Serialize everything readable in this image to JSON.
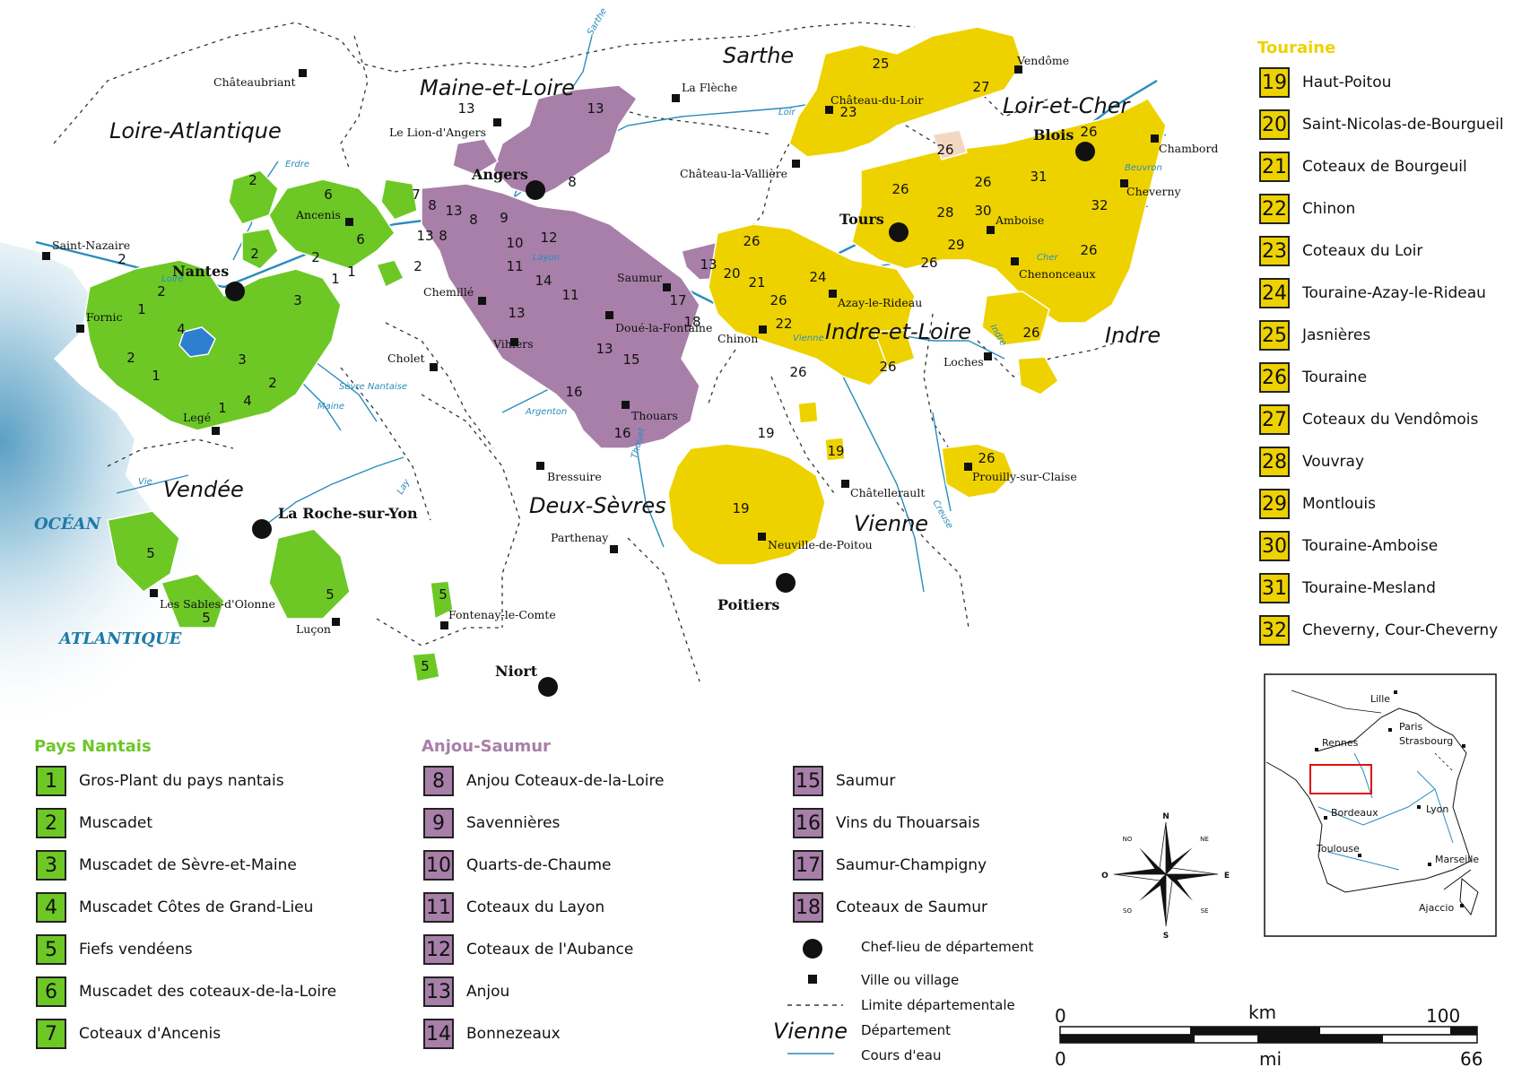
{
  "map": {
    "sea_labels": [
      "OCÉAN",
      "ATLANTIQUE"
    ],
    "departments": [
      {
        "name": "Loire-Atlantique"
      },
      {
        "name": "Maine-et-Loire"
      },
      {
        "name": "Sarthe"
      },
      {
        "name": "Loir-et-Cher"
      },
      {
        "name": "Indre-et-Loire"
      },
      {
        "name": "Indre"
      },
      {
        "name": "Vendée"
      },
      {
        "name": "Deux-Sèvres"
      },
      {
        "name": "Vienne"
      }
    ],
    "prefectures": [
      "Nantes",
      "Angers",
      "Tours",
      "Blois",
      "La Roche-sur-Yon",
      "Niort",
      "Poitiers"
    ],
    "towns": [
      "Châteaubriant",
      "Le Lion-d'Angers",
      "La Flèche",
      "Vendôme",
      "Château-du-Loir",
      "Chambord",
      "Cheverny",
      "Château-la-Vallière",
      "Saint-Nazaire",
      "Ancenis",
      "Amboise",
      "Chenonceaux",
      "Chemillé",
      "Saumur",
      "Fornic",
      "Doué-la-Fontaine",
      "Chinon",
      "Azay-le-Rideau",
      "Vihiers",
      "Cholet",
      "Loches",
      "Legé",
      "Thouars",
      "Bressuire",
      "Châtellerault",
      "Prouilly-sur-Claise",
      "Neuville-de-Poitou",
      "Parthenay",
      "Les Sables-d'Olonne",
      "Luçon",
      "Fontenay-le-Comte"
    ],
    "rivers": [
      "Sarthe",
      "Loir",
      "Erdre",
      "Loire",
      "Layon",
      "Cher",
      "Beuvron",
      "Vienne",
      "Indre",
      "Sèvre Nantaise",
      "Maine",
      "Argenton",
      "Thouet",
      "Creuse",
      "Vie",
      "Lay"
    ],
    "zone_numbers": {
      "pays_nantais": [
        "2",
        "6",
        "7",
        "2",
        "2",
        "2",
        "1",
        "2",
        "6",
        "2",
        "1",
        "3",
        "1",
        "4",
        "2",
        "1",
        "3",
        "2",
        "1",
        "4",
        "5",
        "5",
        "5",
        "5",
        "5"
      ],
      "anjou_saumur": [
        "13",
        "13",
        "8",
        "8",
        "13",
        "8",
        "9",
        "13",
        "8",
        "10",
        "12",
        "11",
        "14",
        "11",
        "13",
        "13",
        "17",
        "18",
        "15",
        "16",
        "16",
        "13"
      ],
      "touraine": [
        "25",
        "27",
        "23",
        "26",
        "26",
        "26",
        "31",
        "32",
        "26",
        "28",
        "30",
        "29",
        "26",
        "26",
        "20",
        "21",
        "24",
        "26",
        "22",
        "26",
        "26",
        "26",
        "26",
        "19",
        "19",
        "19",
        "26"
      ]
    },
    "colors": {
      "pays_nantais": "#6dc826",
      "anjou_saumur": "#a77fa8",
      "touraine": "#eed200",
      "lake": "#2f7fd0",
      "river": "#2a8cbe",
      "sea_text": "#1f7aa8"
    }
  },
  "legend": {
    "pays_nantais": {
      "title": "Pays Nantais",
      "items": [
        {
          "num": "1",
          "label": "Gros-Plant du pays nantais"
        },
        {
          "num": "2",
          "label": "Muscadet"
        },
        {
          "num": "3",
          "label": "Muscadet de Sèvre-et-Maine"
        },
        {
          "num": "4",
          "label": "Muscadet Côtes de Grand-Lieu"
        },
        {
          "num": "5",
          "label": "Fiefs vendéens"
        },
        {
          "num": "6",
          "label": "Muscadet des coteaux-de-la-Loire"
        },
        {
          "num": "7",
          "label": "Coteaux d'Ancenis"
        }
      ]
    },
    "anjou_saumur": {
      "title": "Anjou-Saumur",
      "items": [
        {
          "num": "8",
          "label": "Anjou Coteaux-de-la-Loire"
        },
        {
          "num": "9",
          "label": "Savennières"
        },
        {
          "num": "10",
          "label": "Quarts-de-Chaume"
        },
        {
          "num": "11",
          "label": "Coteaux du Layon"
        },
        {
          "num": "12",
          "label": "Coteaux de l'Aubance"
        },
        {
          "num": "13",
          "label": "Anjou"
        },
        {
          "num": "14",
          "label": "Bonnezeaux"
        }
      ],
      "items_col2": [
        {
          "num": "15",
          "label": "Saumur"
        },
        {
          "num": "16",
          "label": "Vins du Thouarsais"
        },
        {
          "num": "17",
          "label": "Saumur-Champigny"
        },
        {
          "num": "18",
          "label": "Coteaux de Saumur"
        }
      ]
    },
    "touraine": {
      "title": "Touraine",
      "items": [
        {
          "num": "19",
          "label": "Haut-Poitou"
        },
        {
          "num": "20",
          "label": "Saint-Nicolas-de-Bourgueil"
        },
        {
          "num": "21",
          "label": "Coteaux de Bourgeuil"
        },
        {
          "num": "22",
          "label": "Chinon"
        },
        {
          "num": "23",
          "label": "Coteaux du Loir"
        },
        {
          "num": "24",
          "label": "Touraine-Azay-le-Rideau"
        },
        {
          "num": "25",
          "label": "Jasnières"
        },
        {
          "num": "26",
          "label": "Touraine"
        },
        {
          "num": "27",
          "label": "Coteaux du Vendômois"
        },
        {
          "num": "28",
          "label": "Vouvray"
        },
        {
          "num": "29",
          "label": "Montlouis"
        },
        {
          "num": "30",
          "label": "Touraine-Amboise"
        },
        {
          "num": "31",
          "label": "Touraine-Mesland"
        },
        {
          "num": "32",
          "label": "Cheverny, Cour-Cheverny"
        }
      ]
    },
    "symbols": {
      "prefecture": "Chef-lieu de département",
      "town": "Ville ou village",
      "boundary": "Limite départementale",
      "department_sample": "Vienne",
      "department": "Département",
      "river": "Cours d'eau"
    }
  },
  "compass": {
    "n": "N",
    "s": "S",
    "e": "E",
    "o": "O",
    "ne": "NE",
    "no": "NO",
    "se": "SE",
    "so": "SO"
  },
  "scale": {
    "km_zero": "0",
    "km_unit": "km",
    "km_max": "100",
    "mi_zero": "0",
    "mi_unit": "mi",
    "mi_max": "66"
  },
  "inset": {
    "cities": [
      "Lille",
      "Paris",
      "Rennes",
      "Strasbourg",
      "Bordeaux",
      "Lyon",
      "Toulouse",
      "Marseille",
      "Ajaccio"
    ]
  }
}
